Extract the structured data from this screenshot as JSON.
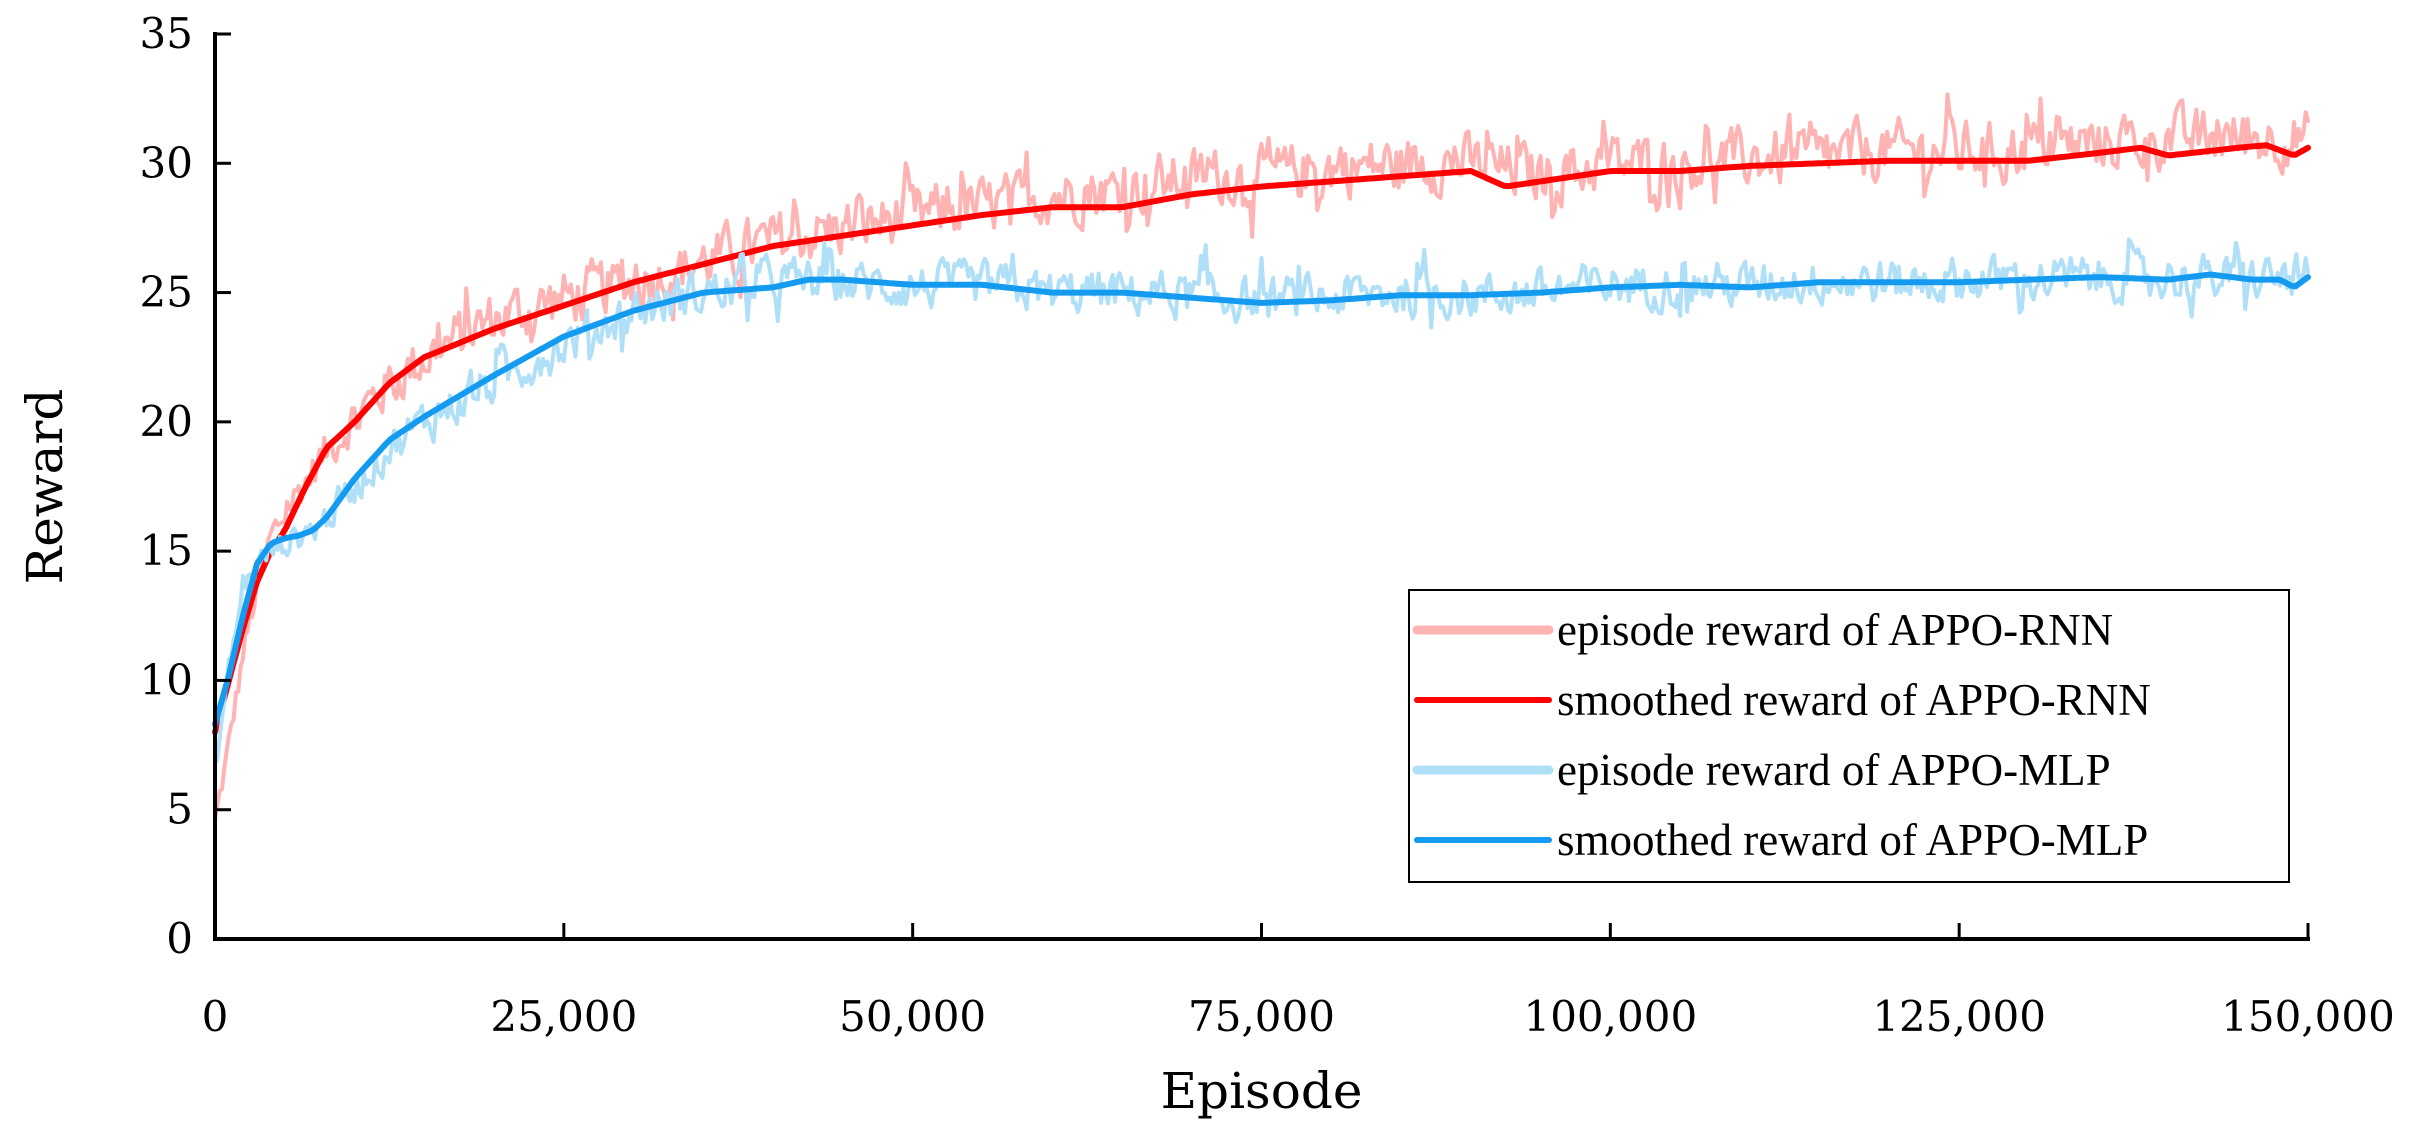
{
  "chart_data": {
    "type": "line",
    "title": "",
    "xlabel": "Episode",
    "ylabel": "Reward",
    "xlim": [
      0,
      150000
    ],
    "ylim": [
      0,
      35
    ],
    "xticks": [
      0,
      25000,
      50000,
      75000,
      100000,
      125000,
      150000
    ],
    "xtick_labels": [
      "0",
      "25,000",
      "50,000",
      "75,000",
      "100,000",
      "125,000",
      "150,000"
    ],
    "yticks": [
      0,
      5,
      10,
      15,
      20,
      25,
      30,
      35
    ],
    "ytick_labels": [
      "0",
      "5",
      "10",
      "15",
      "20",
      "25",
      "30",
      "35"
    ],
    "grid": false,
    "legend_position": "bottom-right",
    "series": [
      {
        "name": "episode reward of APPO-RNN",
        "color": "#ffb3b3",
        "kind": "raw",
        "x": [
          0,
          1000,
          2000,
          3000,
          4000,
          5000,
          7500,
          10000,
          12500,
          15000,
          20000,
          25000,
          30000,
          35000,
          40000,
          45000,
          50000,
          55000,
          60000,
          65000,
          70000,
          75000,
          80000,
          85000,
          90000,
          95000,
          100000,
          105000,
          110000,
          115000,
          120000,
          125000,
          130000,
          135000,
          140000,
          145000,
          150000
        ],
        "y": [
          4.5,
          7.5,
          11,
          13.5,
          15.5,
          16.5,
          18.5,
          20.2,
          21.5,
          22.5,
          24,
          24.8,
          25.4,
          26.2,
          27,
          27.5,
          28,
          28.3,
          28.8,
          29,
          29.5,
          29.5,
          29.8,
          30,
          30,
          29.5,
          30,
          30,
          30.2,
          30.2,
          30.5,
          30.5,
          30.6,
          30.8,
          31,
          31,
          31
        ]
      },
      {
        "name": "smoothed reward of APPO-RNN",
        "color": "#ff0000",
        "kind": "smooth",
        "x": [
          0,
          1000,
          2000,
          3000,
          4000,
          5000,
          6500,
          8000,
          10000,
          12500,
          15000,
          20000,
          25000,
          30000,
          35000,
          40000,
          45000,
          50000,
          55000,
          60000,
          65000,
          70000,
          75000,
          80000,
          85000,
          90000,
          92500,
          95000,
          100000,
          105000,
          110000,
          115000,
          120000,
          125000,
          130000,
          135000,
          138000,
          140000,
          145000,
          147000,
          149000,
          150000
        ],
        "y": [
          8,
          10,
          12,
          13.8,
          15,
          15.8,
          17.5,
          19,
          20,
          21.5,
          22.5,
          23.6,
          24.5,
          25.4,
          26.1,
          26.8,
          27.2,
          27.6,
          28,
          28.3,
          28.3,
          28.8,
          29.1,
          29.3,
          29.5,
          29.7,
          29.1,
          29.3,
          29.7,
          29.7,
          29.9,
          30,
          30.1,
          30.1,
          30.1,
          30.4,
          30.6,
          30.3,
          30.6,
          30.7,
          30.3,
          30.6
        ]
      },
      {
        "name": "episode reward of APPO-MLP",
        "color": "#b0e0f8",
        "kind": "raw",
        "x": [
          0,
          1000,
          2000,
          3000,
          4000,
          5000,
          7500,
          10000,
          12500,
          15000,
          20000,
          25000,
          30000,
          35000,
          40000,
          45000,
          50000,
          55000,
          60000,
          65000,
          70000,
          75000,
          80000,
          85000,
          90000,
          95000,
          100000,
          105000,
          110000,
          115000,
          120000,
          125000,
          130000,
          135000,
          140000,
          145000,
          150000
        ],
        "y": [
          6.5,
          10.5,
          13.5,
          14.5,
          15,
          15.3,
          16,
          17.5,
          19,
          20,
          21.5,
          23,
          24.3,
          25,
          25.5,
          25.4,
          25.2,
          25.3,
          25,
          25,
          24.9,
          24.7,
          24.8,
          25,
          24.9,
          25,
          25.3,
          25.3,
          25.3,
          25.5,
          25.4,
          25.5,
          25.5,
          25.6,
          25.6,
          25.5,
          25.6
        ]
      },
      {
        "name": "smoothed reward of APPO-MLP",
        "color": "#149bf0",
        "kind": "smooth",
        "x": [
          0,
          1000,
          2000,
          3000,
          4000,
          5000,
          6000,
          7000,
          8000,
          10000,
          12500,
          15000,
          20000,
          25000,
          30000,
          35000,
          40000,
          42500,
          45000,
          50000,
          55000,
          60000,
          65000,
          70000,
          75000,
          80000,
          85000,
          90000,
          95000,
          100000,
          105000,
          110000,
          115000,
          120000,
          125000,
          130000,
          135000,
          140000,
          143000,
          146000,
          148000,
          149000,
          150000
        ],
        "y": [
          8.3,
          10.2,
          12.5,
          14.5,
          15.3,
          15.5,
          15.6,
          15.8,
          16.3,
          17.8,
          19.3,
          20.2,
          21.8,
          23.3,
          24.3,
          25,
          25.2,
          25.5,
          25.5,
          25.3,
          25.3,
          25,
          25,
          24.8,
          24.6,
          24.7,
          24.9,
          24.9,
          25,
          25.2,
          25.3,
          25.2,
          25.4,
          25.4,
          25.4,
          25.5,
          25.6,
          25.5,
          25.7,
          25.5,
          25.5,
          25.2,
          25.6
        ]
      }
    ]
  }
}
